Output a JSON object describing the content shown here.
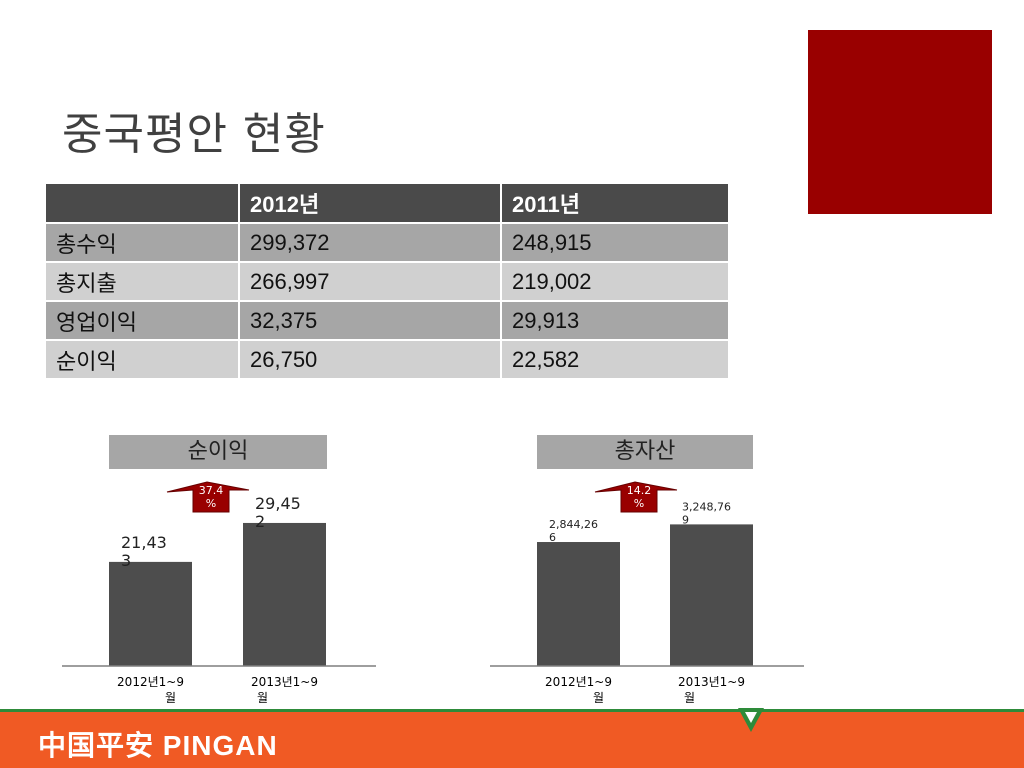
{
  "title": "중국평안 현황",
  "table": {
    "headers": [
      "",
      "2012년",
      "2011년"
    ],
    "rows": [
      [
        "총수익",
        "299,372",
        "248,915"
      ],
      [
        "총지출",
        "266,997",
        "219,002"
      ],
      [
        "영업이익",
        "32,375",
        "29,913"
      ],
      [
        "순이익",
        "26,750",
        "22,582"
      ]
    ]
  },
  "colors": {
    "accent": "#990000",
    "bar": "#4d4d4d",
    "footer": "#f05a24",
    "footer_line": "#2e8b3a"
  },
  "chart_data": [
    {
      "type": "bar",
      "title": "순이익",
      "categories": [
        "2012년1~9월",
        "2013년1~9월"
      ],
      "values": [
        21433,
        29452
      ],
      "data_labels": [
        "21,433",
        "29,452"
      ],
      "growth_label": "37.4%",
      "ylim": [
        0,
        35000
      ]
    },
    {
      "type": "bar",
      "title": "총자산",
      "categories": [
        "2012년1~9월",
        "2013년1~9월"
      ],
      "values": [
        2844266,
        3248769
      ],
      "data_labels": [
        "2,844,266",
        "3,248,769"
      ],
      "growth_label": "14.2%",
      "ylim": [
        0,
        3900000
      ]
    }
  ],
  "footer": {
    "logo_text": "中国平安 PINGAN"
  }
}
